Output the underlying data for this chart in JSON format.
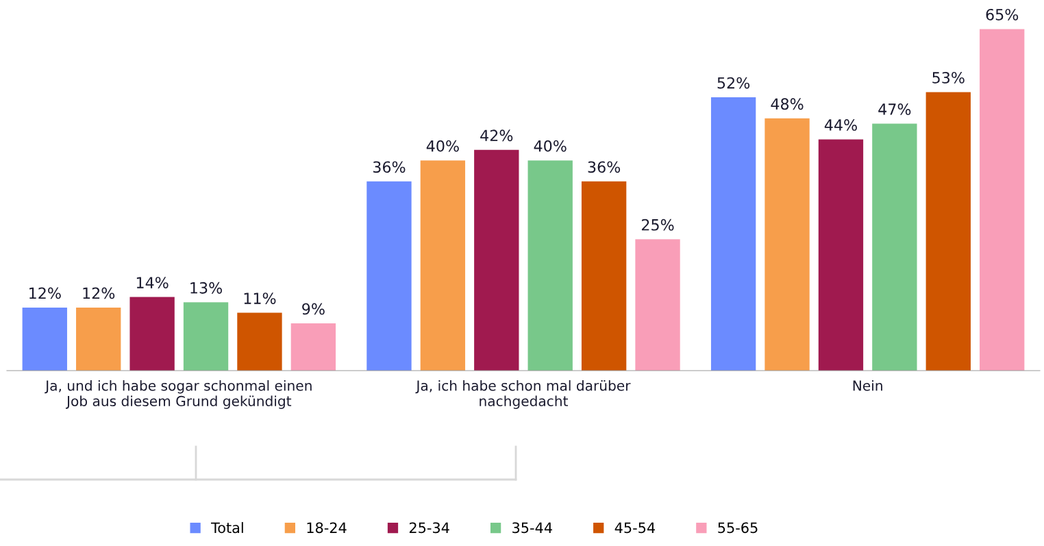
{
  "chart_data": {
    "type": "bar",
    "categories": [
      "Ja, und ich habe sogar schonmal einen\nJob aus diesem Grund gekündigt",
      "Ja, ich habe schon mal darüber\nnachgedacht",
      "Nein"
    ],
    "series": [
      {
        "name": "Total",
        "color": "#6b8bff",
        "values": [
          12,
          36,
          52
        ],
        "value_labels": [
          "12%",
          "36%",
          "52%"
        ]
      },
      {
        "name": "18-24",
        "color": "#f79e4b",
        "values": [
          12,
          40,
          48
        ],
        "value_labels": [
          "12%",
          "40%",
          "48%"
        ]
      },
      {
        "name": "25-34",
        "color": "#a01a4f",
        "values": [
          14,
          42,
          44
        ],
        "value_labels": [
          "14%",
          "42%",
          "44%"
        ]
      },
      {
        "name": "35-44",
        "color": "#78c88a",
        "values": [
          13,
          40,
          47
        ],
        "value_labels": [
          "13%",
          "40%",
          "47%"
        ]
      },
      {
        "name": "45-54",
        "color": "#cf5500",
        "values": [
          11,
          36,
          53
        ],
        "value_labels": [
          "11%",
          "36%",
          "53%"
        ]
      },
      {
        "name": "55-65",
        "color": "#f99eb8",
        "values": [
          9,
          25,
          65
        ],
        "value_labels": [
          "9%",
          "25%",
          "65%"
        ]
      }
    ],
    "legend": "bottom",
    "grid": false
  }
}
